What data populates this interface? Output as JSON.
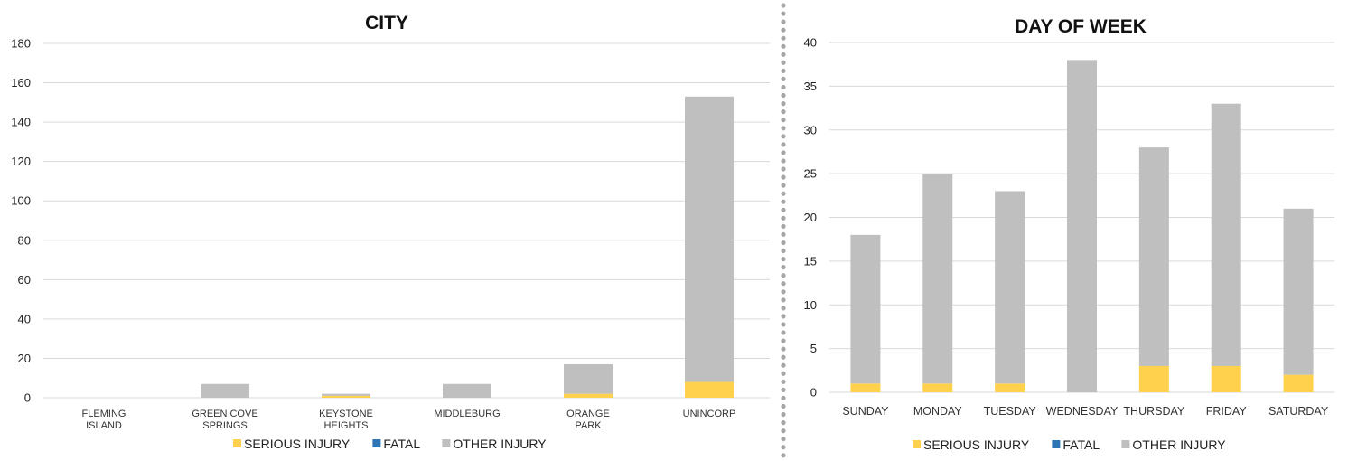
{
  "colors": {
    "serious_injury": "#FFD14D",
    "fatal": "#2E75B6",
    "other_injury": "#BFBFBF",
    "separator": "#A6A6A6"
  },
  "chart_data": [
    {
      "type": "bar",
      "stacked": true,
      "title": "CITY",
      "categories": [
        [
          "FLEMING",
          "ISLAND"
        ],
        [
          "GREEN COVE",
          "SPRINGS"
        ],
        [
          "KEYSTONE",
          "HEIGHTS"
        ],
        [
          "MIDDLEBURG"
        ],
        [
          "ORANGE",
          "PARK"
        ],
        [
          "UNINCORP"
        ]
      ],
      "series": [
        {
          "name": "SERIOUS INJURY",
          "values": [
            0,
            0,
            1,
            0,
            2,
            8
          ]
        },
        {
          "name": "FATAL",
          "values": [
            0,
            0,
            0,
            0,
            0,
            0
          ]
        },
        {
          "name": "OTHER INJURY",
          "values": [
            0,
            7,
            1,
            7,
            15,
            145
          ]
        }
      ],
      "ylim": [
        0,
        180
      ],
      "yticks": [
        0,
        20,
        40,
        60,
        80,
        100,
        120,
        140,
        160,
        180
      ],
      "grid": true,
      "legend": "bottom"
    },
    {
      "type": "bar",
      "stacked": true,
      "title": "DAY OF WEEK",
      "categories": [
        [
          "SUNDAY"
        ],
        [
          "MONDAY"
        ],
        [
          "TUESDAY"
        ],
        [
          "WEDNESDAY"
        ],
        [
          "THURSDAY"
        ],
        [
          "FRIDAY"
        ],
        [
          "SATURDAY"
        ]
      ],
      "series": [
        {
          "name": "SERIOUS INJURY",
          "values": [
            1,
            1,
            1,
            0,
            3,
            3,
            2
          ]
        },
        {
          "name": "FATAL",
          "values": [
            0,
            0,
            0,
            0,
            0,
            0,
            0
          ]
        },
        {
          "name": "OTHER INJURY",
          "values": [
            17,
            24,
            22,
            38,
            25,
            30,
            19
          ]
        }
      ],
      "ylim": [
        0,
        40
      ],
      "yticks": [
        0,
        5,
        10,
        15,
        20,
        25,
        30,
        35,
        40
      ],
      "grid": true,
      "legend": "bottom"
    }
  ]
}
